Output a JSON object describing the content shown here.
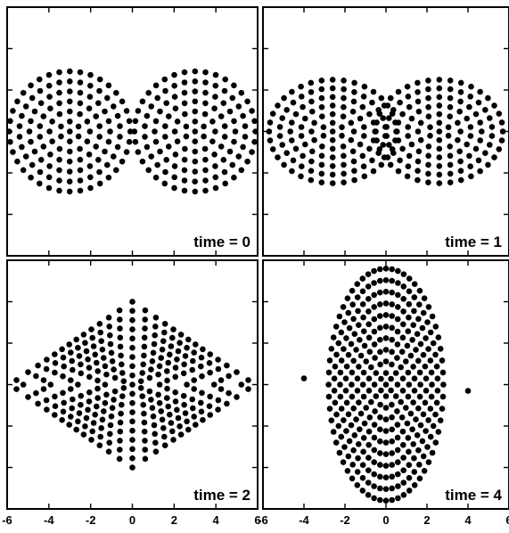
{
  "chart_data": [
    {
      "type": "scatter",
      "panel_label": "time = 0",
      "xlim": [
        -6,
        6
      ],
      "ylim": [
        -6,
        6
      ],
      "xticks": [
        -6,
        -4,
        -2,
        0,
        2,
        4,
        6
      ],
      "grid": false,
      "shape": {
        "kind": "two-clusters",
        "clusters": [
          {
            "cx": -3,
            "cy": 0,
            "rx": 2.9,
            "ry": 2.9,
            "rings": 6
          },
          {
            "cx": 3,
            "cy": 0,
            "rx": 2.9,
            "ry": 2.9,
            "rings": 6
          }
        ]
      },
      "dot_color": "#000000"
    },
    {
      "type": "scatter",
      "panel_label": "time = 1",
      "xlim": [
        -6,
        6
      ],
      "ylim": [
        -6,
        6
      ],
      "xticks": [
        -6,
        -4,
        -2,
        0,
        2,
        4,
        6
      ],
      "grid": false,
      "shape": {
        "kind": "two-clusters",
        "clusters": [
          {
            "cx": -2.6,
            "cy": 0,
            "rx": 3.1,
            "ry": 2.5,
            "rings": 6
          },
          {
            "cx": 2.6,
            "cy": 0,
            "rx": 3.1,
            "ry": 2.5,
            "rings": 6
          }
        ]
      },
      "dot_color": "#000000"
    },
    {
      "type": "scatter",
      "panel_label": "time = 2",
      "xlim": [
        -6,
        6
      ],
      "ylim": [
        -6,
        6
      ],
      "xticks": [
        -6,
        -4,
        -2,
        0,
        2,
        4,
        6
      ],
      "grid": false,
      "shape": {
        "kind": "diamond",
        "cx": 0,
        "cy": 0,
        "rx": 4.7,
        "ry": 3.2,
        "rings": 9
      },
      "dot_color": "#000000"
    },
    {
      "type": "scatter",
      "panel_label": "time = 4",
      "xlim": [
        -6,
        6
      ],
      "ylim": [
        -6,
        6
      ],
      "xticks": [
        -6,
        -4,
        -2,
        0,
        2,
        4,
        6
      ],
      "grid": false,
      "shape": {
        "kind": "vertical-ellipse",
        "cx": 0,
        "cy": 0,
        "rx": 2.8,
        "ry": 5.6,
        "rings": 10,
        "extra_points": [
          [
            -4.0,
            0.3
          ],
          [
            4.0,
            -0.3
          ]
        ]
      },
      "dot_color": "#000000"
    }
  ],
  "panels": [
    {
      "label": "time = 0"
    },
    {
      "label": "time = 1"
    },
    {
      "label": "time = 2"
    },
    {
      "label": "time = 4"
    }
  ],
  "x_tick_labels": [
    "-6",
    "-4",
    "-2",
    "0",
    "2",
    "4",
    "6"
  ]
}
